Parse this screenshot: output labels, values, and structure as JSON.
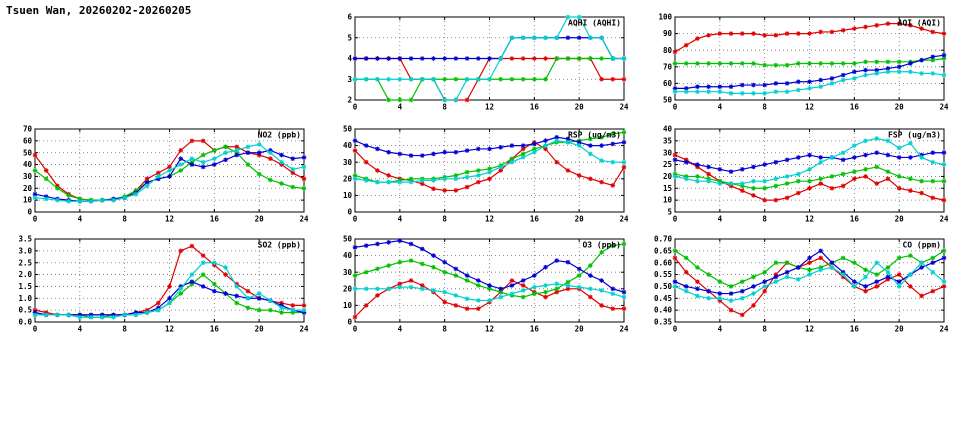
{
  "page": {
    "title": "Tsuen Wan, 20260202-20260205"
  },
  "colors": {
    "red": "#e00000",
    "green": "#00c000",
    "blue": "#0000d0",
    "cyan": "#00d0d0",
    "grid": "#707070",
    "axis": "#000000"
  },
  "chart_data": [
    {
      "id": "aqhi",
      "type": "line",
      "title": "AQHI (AQHI)",
      "xlabel": "",
      "ylabel": "",
      "ylim": [
        2,
        6
      ],
      "ystep": 1,
      "ydecimals": 0,
      "xlim": [
        0,
        24
      ],
      "xstep": 4,
      "x_unit": "hour",
      "grid": true,
      "legend": "none",
      "series": [
        {
          "name": "red",
          "values": [
            4,
            4,
            4,
            4,
            4,
            3,
            3,
            3,
            2,
            2,
            2,
            3,
            4,
            4,
            4,
            4,
            4,
            4,
            4,
            4,
            4,
            4,
            3,
            3,
            3
          ]
        },
        {
          "name": "green",
          "values": [
            3,
            3,
            3,
            2,
            2,
            2,
            3,
            3,
            3,
            3,
            3,
            3,
            3,
            3,
            3,
            3,
            3,
            3,
            4,
            4,
            4,
            4,
            4,
            4,
            4
          ]
        },
        {
          "name": "blue",
          "values": [
            4,
            4,
            4,
            4,
            4,
            4,
            4,
            4,
            4,
            4,
            4,
            4,
            4,
            4,
            5,
            5,
            5,
            5,
            5,
            5,
            5,
            5,
            5,
            4,
            4
          ]
        },
        {
          "name": "cyan",
          "values": [
            3,
            3,
            3,
            3,
            3,
            3,
            3,
            3,
            2,
            2,
            3,
            3,
            3,
            4,
            5,
            5,
            5,
            5,
            5,
            6,
            6,
            5,
            5,
            4,
            4
          ]
        }
      ]
    },
    {
      "id": "aqi",
      "type": "line",
      "title": "AQI (AQI)",
      "xlabel": "",
      "ylabel": "",
      "ylim": [
        50,
        100
      ],
      "ystep": 10,
      "ydecimals": 0,
      "xlim": [
        0,
        24
      ],
      "xstep": 4,
      "x_unit": "hour",
      "grid": true,
      "legend": "none",
      "series": [
        {
          "name": "red",
          "values": [
            79,
            83,
            87,
            89,
            90,
            90,
            90,
            90,
            89,
            89,
            90,
            90,
            90,
            91,
            91,
            92,
            93,
            94,
            95,
            96,
            96,
            95,
            93,
            91,
            90
          ]
        },
        {
          "name": "green",
          "values": [
            72,
            72,
            72,
            72,
            72,
            72,
            72,
            72,
            71,
            71,
            71,
            72,
            72,
            72,
            72,
            72,
            72,
            73,
            73,
            73,
            73,
            73,
            74,
            74,
            75
          ]
        },
        {
          "name": "blue",
          "values": [
            57,
            57,
            58,
            58,
            58,
            58,
            59,
            59,
            59,
            60,
            60,
            61,
            61,
            62,
            63,
            65,
            67,
            68,
            68,
            69,
            70,
            72,
            74,
            76,
            77
          ]
        },
        {
          "name": "cyan",
          "values": [
            55,
            55,
            55,
            55,
            55,
            54,
            54,
            54,
            54,
            55,
            55,
            56,
            57,
            58,
            60,
            62,
            63,
            65,
            66,
            67,
            67,
            67,
            66,
            66,
            65
          ]
        }
      ]
    },
    {
      "id": "no2",
      "type": "line",
      "title": "NO2 (ppb)",
      "xlabel": "",
      "ylabel": "",
      "ylim": [
        0,
        70
      ],
      "ystep": 10,
      "ydecimals": 0,
      "xlim": [
        0,
        24
      ],
      "xstep": 4,
      "x_unit": "hour",
      "grid": true,
      "legend": "none",
      "series": [
        {
          "name": "red",
          "values": [
            48,
            35,
            22,
            15,
            11,
            10,
            10,
            10,
            12,
            18,
            28,
            33,
            38,
            52,
            60,
            60,
            52,
            55,
            55,
            50,
            48,
            45,
            40,
            33,
            28
          ]
        },
        {
          "name": "green",
          "values": [
            35,
            28,
            20,
            14,
            11,
            10,
            10,
            11,
            13,
            18,
            25,
            28,
            30,
            35,
            42,
            48,
            52,
            55,
            50,
            40,
            32,
            27,
            24,
            21,
            20
          ]
        },
        {
          "name": "blue",
          "values": [
            15,
            13,
            11,
            10,
            9,
            9,
            10,
            11,
            12,
            16,
            25,
            28,
            30,
            45,
            40,
            38,
            40,
            44,
            48,
            50,
            50,
            52,
            48,
            45,
            46
          ]
        },
        {
          "name": "cyan",
          "values": [
            12,
            11,
            10,
            9,
            9,
            9,
            10,
            10,
            12,
            15,
            22,
            30,
            35,
            40,
            45,
            42,
            45,
            50,
            52,
            55,
            57,
            50,
            42,
            36,
            38
          ]
        }
      ]
    },
    {
      "id": "rsp",
      "type": "line",
      "title": "RSP (ug/m3)",
      "xlabel": "",
      "ylabel": "",
      "ylim": [
        0,
        50
      ],
      "ystep": 10,
      "ydecimals": 0,
      "xlim": [
        0,
        24
      ],
      "xstep": 4,
      "x_unit": "hour",
      "grid": true,
      "legend": "none",
      "series": [
        {
          "name": "red",
          "values": [
            37,
            30,
            25,
            22,
            20,
            19,
            17,
            14,
            13,
            13,
            15,
            18,
            20,
            25,
            32,
            38,
            42,
            38,
            30,
            25,
            22,
            20,
            18,
            16,
            27
          ]
        },
        {
          "name": "green",
          "values": [
            22,
            20,
            18,
            18,
            19,
            20,
            20,
            20,
            21,
            22,
            24,
            25,
            26,
            28,
            32,
            35,
            38,
            40,
            42,
            42,
            43,
            44,
            45,
            47,
            48
          ]
        },
        {
          "name": "blue",
          "values": [
            43,
            40,
            38,
            36,
            35,
            34,
            34,
            35,
            36,
            36,
            37,
            38,
            38,
            39,
            40,
            40,
            41,
            43,
            45,
            44,
            42,
            40,
            40,
            41,
            42
          ]
        },
        {
          "name": "cyan",
          "values": [
            20,
            19,
            18,
            18,
            18,
            18,
            19,
            19,
            20,
            20,
            21,
            22,
            24,
            27,
            30,
            33,
            36,
            40,
            43,
            42,
            40,
            35,
            31,
            30,
            30
          ]
        }
      ]
    },
    {
      "id": "fsp",
      "type": "line",
      "title": "FSP (ug/m3)",
      "xlabel": "",
      "ylabel": "",
      "ylim": [
        5,
        40
      ],
      "ystep": 5,
      "ydecimals": 0,
      "xlim": [
        0,
        24
      ],
      "xstep": 4,
      "x_unit": "hour",
      "grid": true,
      "legend": "none",
      "series": [
        {
          "name": "red",
          "values": [
            29,
            27,
            24,
            21,
            18,
            16,
            14,
            12,
            10,
            10,
            11,
            13,
            15,
            17,
            15,
            16,
            19,
            20,
            17,
            19,
            15,
            14,
            13,
            11,
            10
          ]
        },
        {
          "name": "green",
          "values": [
            21,
            20,
            20,
            19,
            18,
            17,
            16,
            15,
            15,
            16,
            17,
            18,
            18,
            19,
            20,
            21,
            22,
            23,
            24,
            22,
            20,
            19,
            18,
            18,
            18
          ]
        },
        {
          "name": "blue",
          "values": [
            27,
            26,
            25,
            24,
            23,
            22,
            23,
            24,
            25,
            26,
            27,
            28,
            29,
            28,
            28,
            27,
            28,
            29,
            30,
            29,
            28,
            28,
            29,
            30,
            30
          ]
        },
        {
          "name": "cyan",
          "values": [
            20,
            19,
            18,
            18,
            17,
            17,
            17,
            18,
            18,
            19,
            20,
            21,
            23,
            26,
            28,
            30,
            33,
            35,
            36,
            35,
            32,
            34,
            28,
            26,
            25
          ]
        }
      ]
    },
    {
      "id": "so2",
      "type": "line",
      "title": "SO2 (ppb)",
      "xlabel": "",
      "ylabel": "",
      "ylim": [
        0,
        3.5
      ],
      "ystep": 0.5,
      "ydecimals": 1,
      "xlim": [
        0,
        24
      ],
      "xstep": 4,
      "x_unit": "hour",
      "grid": true,
      "legend": "none",
      "series": [
        {
          "name": "red",
          "values": [
            0.5,
            0.4,
            0.3,
            0.3,
            0.3,
            0.3,
            0.3,
            0.3,
            0.3,
            0.4,
            0.5,
            0.8,
            1.5,
            3.0,
            3.2,
            2.8,
            2.4,
            2.0,
            1.6,
            1.3,
            1.0,
            0.9,
            0.8,
            0.7,
            0.7
          ]
        },
        {
          "name": "green",
          "values": [
            0.3,
            0.3,
            0.3,
            0.3,
            0.3,
            0.2,
            0.2,
            0.3,
            0.3,
            0.3,
            0.4,
            0.5,
            0.8,
            1.2,
            1.6,
            2.0,
            1.6,
            1.2,
            0.8,
            0.6,
            0.5,
            0.5,
            0.4,
            0.4,
            0.4
          ]
        },
        {
          "name": "blue",
          "values": [
            0.4,
            0.3,
            0.3,
            0.3,
            0.3,
            0.3,
            0.3,
            0.3,
            0.3,
            0.4,
            0.4,
            0.6,
            1.0,
            1.5,
            1.7,
            1.5,
            1.3,
            1.2,
            1.1,
            1.0,
            1.0,
            0.9,
            0.7,
            0.5,
            0.4
          ]
        },
        {
          "name": "cyan",
          "values": [
            0.3,
            0.3,
            0.3,
            0.3,
            0.2,
            0.2,
            0.2,
            0.2,
            0.3,
            0.3,
            0.4,
            0.5,
            0.8,
            1.4,
            2.0,
            2.5,
            2.5,
            2.3,
            1.5,
            1.0,
            1.2,
            0.9,
            0.6,
            0.5,
            0.5
          ]
        }
      ]
    },
    {
      "id": "o3",
      "type": "line",
      "title": "O3 (ppb)",
      "xlabel": "",
      "ylabel": "",
      "ylim": [
        0,
        50
      ],
      "ystep": 10,
      "ydecimals": 0,
      "xlim": [
        0,
        24
      ],
      "xstep": 4,
      "x_unit": "hour",
      "grid": true,
      "legend": "none",
      "series": [
        {
          "name": "red",
          "values": [
            3,
            10,
            16,
            20,
            23,
            25,
            22,
            18,
            12,
            10,
            8,
            8,
            12,
            18,
            25,
            22,
            18,
            15,
            18,
            20,
            20,
            15,
            10,
            8,
            8
          ]
        },
        {
          "name": "green",
          "values": [
            28,
            30,
            32,
            34,
            36,
            37,
            35,
            33,
            30,
            28,
            25,
            22,
            20,
            18,
            16,
            15,
            17,
            18,
            20,
            24,
            28,
            34,
            42,
            46,
            47
          ]
        },
        {
          "name": "blue",
          "values": [
            45,
            46,
            47,
            48,
            49,
            47,
            44,
            40,
            36,
            32,
            28,
            25,
            22,
            20,
            22,
            25,
            28,
            33,
            37,
            36,
            32,
            28,
            25,
            20,
            18
          ]
        },
        {
          "name": "cyan",
          "values": [
            20,
            20,
            20,
            20,
            21,
            21,
            20,
            19,
            18,
            16,
            14,
            13,
            13,
            15,
            17,
            19,
            21,
            22,
            23,
            22,
            21,
            20,
            19,
            17,
            15
          ]
        }
      ]
    },
    {
      "id": "co",
      "type": "line",
      "title": "CO (ppm)",
      "xlabel": "",
      "ylabel": "",
      "ylim": [
        0.35,
        0.7
      ],
      "ystep": 0.05,
      "ydecimals": 2,
      "xlim": [
        0,
        24
      ],
      "xstep": 4,
      "x_unit": "hour",
      "grid": true,
      "legend": "none",
      "series": [
        {
          "name": "red",
          "values": [
            0.62,
            0.56,
            0.52,
            0.48,
            0.44,
            0.4,
            0.38,
            0.42,
            0.48,
            0.55,
            0.6,
            0.58,
            0.6,
            0.62,
            0.58,
            0.54,
            0.5,
            0.48,
            0.5,
            0.53,
            0.55,
            0.5,
            0.46,
            0.48,
            0.5
          ]
        },
        {
          "name": "green",
          "values": [
            0.65,
            0.62,
            0.58,
            0.55,
            0.52,
            0.5,
            0.52,
            0.54,
            0.56,
            0.6,
            0.6,
            0.58,
            0.57,
            0.58,
            0.6,
            0.62,
            0.6,
            0.57,
            0.55,
            0.58,
            0.62,
            0.63,
            0.6,
            0.62,
            0.65
          ]
        },
        {
          "name": "blue",
          "values": [
            0.52,
            0.5,
            0.49,
            0.48,
            0.47,
            0.47,
            0.48,
            0.5,
            0.52,
            0.54,
            0.56,
            0.58,
            0.62,
            0.65,
            0.6,
            0.56,
            0.52,
            0.5,
            0.52,
            0.54,
            0.52,
            0.55,
            0.58,
            0.6,
            0.62
          ]
        },
        {
          "name": "cyan",
          "values": [
            0.5,
            0.48,
            0.46,
            0.45,
            0.45,
            0.44,
            0.45,
            0.47,
            0.5,
            0.52,
            0.54,
            0.53,
            0.55,
            0.57,
            0.58,
            0.55,
            0.5,
            0.54,
            0.6,
            0.56,
            0.5,
            0.55,
            0.6,
            0.56,
            0.52
          ]
        }
      ]
    }
  ]
}
